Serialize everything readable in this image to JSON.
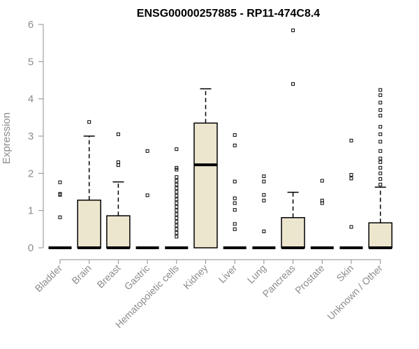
{
  "chart_data": {
    "type": "box",
    "title": "ENSG00000257885 - RP11-474C8.4",
    "xlabel": "",
    "ylabel": "Expression",
    "ylim": [
      0,
      6
    ],
    "yticks": [
      "0",
      "1",
      "2",
      "3",
      "4",
      "5",
      "6"
    ],
    "grid": false,
    "colors": {
      "box_fill": "#ede6cf",
      "stroke": "#000000",
      "axis_text": "#8c8c8c"
    },
    "categories": [
      "Bladder",
      "Brain",
      "Breast",
      "Gastric",
      "Hematopoietic cells",
      "Kidney",
      "Liver",
      "Lung",
      "Pancreas",
      "Prostate",
      "Skin",
      "Unknown / Other"
    ],
    "boxes": [
      {
        "q1": 0,
        "median": 0,
        "q3": 0,
        "whisker_low": 0,
        "whisker_high": 0,
        "outliers": [
          0.82,
          1.42,
          1.45,
          1.76
        ]
      },
      {
        "q1": 0,
        "median": 0,
        "q3": 1.28,
        "whisker_low": 0,
        "whisker_high": 3.0,
        "outliers": [
          3.38
        ]
      },
      {
        "q1": 0,
        "median": 0,
        "q3": 0.86,
        "whisker_low": 0,
        "whisker_high": 1.77,
        "outliers": [
          2.22,
          2.3,
          3.05
        ]
      },
      {
        "q1": 0,
        "median": 0,
        "q3": 0,
        "whisker_low": 0,
        "whisker_high": 0,
        "outliers": [
          1.41,
          2.6
        ]
      },
      {
        "q1": 0,
        "median": 0,
        "q3": 0,
        "whisker_low": 0,
        "whisker_high": 0,
        "outliers": [
          0.3,
          0.4,
          0.5,
          0.6,
          0.7,
          0.8,
          0.9,
          1.0,
          1.1,
          1.2,
          1.3,
          1.4,
          1.5,
          1.6,
          1.7,
          1.8,
          1.9,
          2.1,
          2.15,
          2.65
        ]
      },
      {
        "q1": 0,
        "median": 2.23,
        "q3": 3.35,
        "whisker_low": 0,
        "whisker_high": 4.27,
        "outliers": []
      },
      {
        "q1": 0,
        "median": 0,
        "q3": 0,
        "whisker_low": 0,
        "whisker_high": 0,
        "outliers": [
          0.5,
          0.64,
          1.02,
          1.2,
          1.33,
          1.78,
          2.75,
          3.03
        ]
      },
      {
        "q1": 0,
        "median": 0,
        "q3": 0,
        "whisker_low": 0,
        "whisker_high": 0,
        "outliers": [
          0.44,
          1.27,
          1.42,
          1.78,
          1.92
        ]
      },
      {
        "q1": 0,
        "median": 0,
        "q3": 0.81,
        "whisker_low": 0,
        "whisker_high": 1.49,
        "outliers": [
          4.4,
          5.84
        ]
      },
      {
        "q1": 0,
        "median": 0,
        "q3": 0,
        "whisker_low": 0,
        "whisker_high": 0,
        "outliers": [
          1.2,
          1.27,
          1.8
        ]
      },
      {
        "q1": 0,
        "median": 0,
        "q3": 0,
        "whisker_low": 0,
        "whisker_high": 0,
        "outliers": [
          0.56,
          1.86,
          1.96,
          2.88
        ]
      },
      {
        "q1": 0,
        "median": 0,
        "q3": 0.67,
        "whisker_low": 0,
        "whisker_high": 1.63,
        "outliers": [
          1.7,
          1.85,
          2.0,
          2.15,
          2.3,
          2.4,
          2.6,
          2.85,
          3.05,
          3.25,
          3.55,
          3.7,
          3.9,
          4.1,
          4.24
        ]
      }
    ]
  }
}
